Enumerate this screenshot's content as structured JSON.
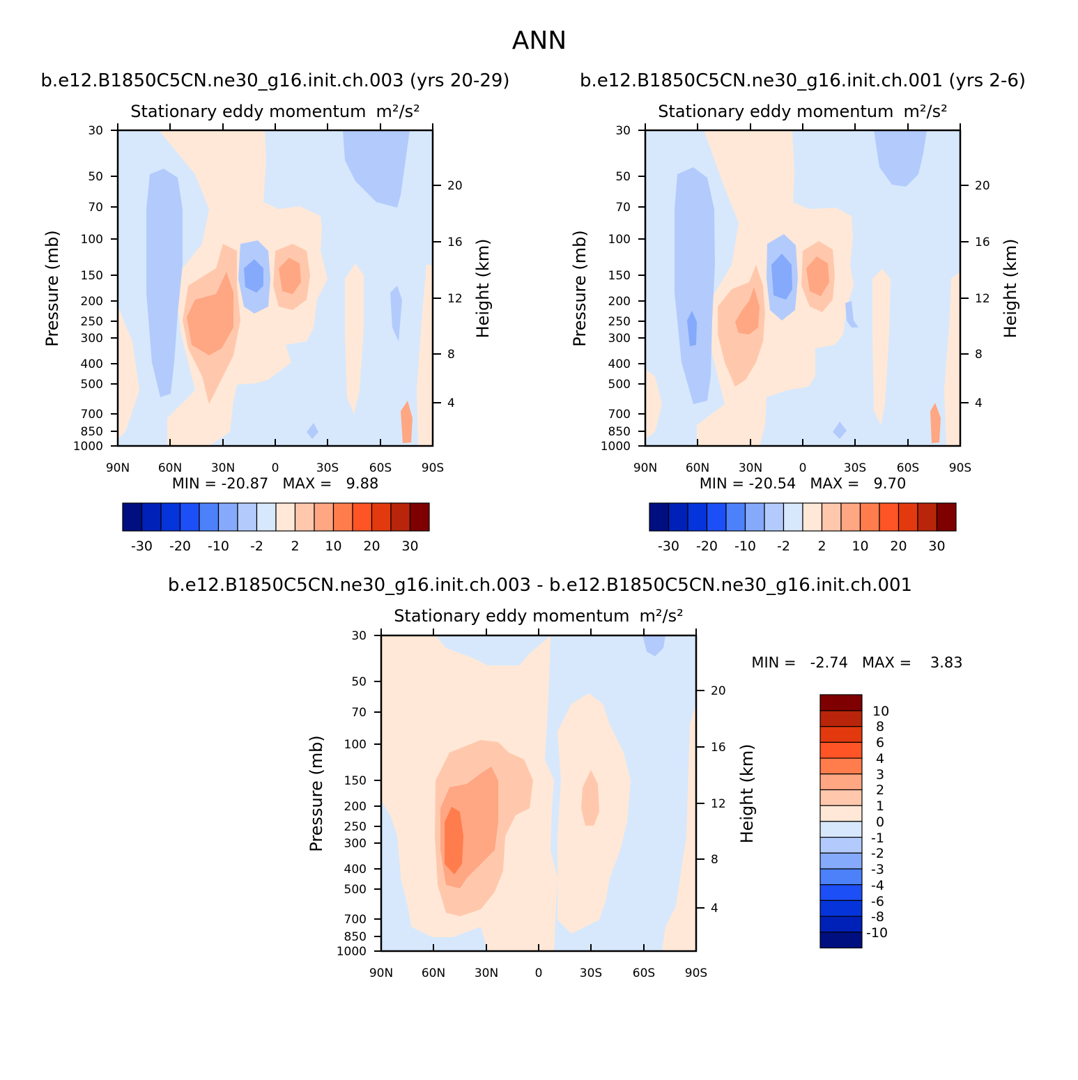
{
  "page_title": "ANN",
  "colors": {
    "warm_levels": [
      "#ffe8d7",
      "#ffc8ad",
      "#ffa683",
      "#ff7d4d",
      "#ff5426",
      "#e23a0e",
      "#b9250a",
      "#7f0000"
    ],
    "cool_levels": [
      "#d7e8fc",
      "#b2cbfc",
      "#85a9fb",
      "#4c81f9",
      "#1d4ff6",
      "#0534db",
      "#0021b8",
      "#000f80"
    ]
  },
  "chart_data": [
    {
      "type": "heatmap",
      "panel_title": "b.e12.B1850C5CN.ne30_g16.init.ch.003 (yrs 20-29)",
      "title": "Stationary eddy momentum",
      "units": "m²/s²",
      "xlabel": "",
      "ylabel": "Pressure (mb)",
      "ylabel_right": "Height (km)",
      "x_ticks": [
        "90N",
        "60N",
        "30N",
        "0",
        "30S",
        "60S",
        "90S"
      ],
      "x_range": [
        90,
        -90
      ],
      "y_ticks": [
        "30",
        "50",
        "70",
        "100",
        "150",
        "200",
        "250",
        "300",
        "400",
        "500",
        "700",
        "850",
        "1000"
      ],
      "y_range": [
        30,
        1000
      ],
      "height_ticks": [
        "20",
        "16",
        "12",
        "8",
        "4"
      ],
      "stats_label": "MIN = -20.87   MAX =   9.88",
      "min": -20.87,
      "max": 9.88,
      "colorbar_labels": [
        "-30",
        "-20",
        "-10",
        "-2",
        "2",
        "10",
        "20",
        "30"
      ],
      "colorbar_levels": [
        -30,
        -25,
        -20,
        -15,
        -10,
        -5,
        -2,
        0,
        2,
        5,
        10,
        15,
        20,
        25,
        30
      ],
      "features": [
        {
          "name": "sh-subtropical-max",
          "lat": -12,
          "p": 150,
          "value": 9.9
        },
        {
          "name": "nh-subtropical-min",
          "lat": 10,
          "p": 150,
          "value": -20.9
        },
        {
          "name": "nh-midlat-positive",
          "lat": 28,
          "p": 280,
          "value": 8
        },
        {
          "name": "nh-highlat-negative",
          "lat": 62,
          "p": 250,
          "value": -5
        }
      ]
    },
    {
      "type": "heatmap",
      "panel_title": "b.e12.B1850C5CN.ne30_g16.init.ch.001 (yrs 2-6)",
      "title": "Stationary eddy momentum",
      "units": "m²/s²",
      "xlabel": "",
      "ylabel": "Pressure (mb)",
      "ylabel_right": "Height (km)",
      "x_ticks": [
        "90N",
        "60N",
        "30N",
        "0",
        "30S",
        "60S",
        "90S"
      ],
      "x_range": [
        90,
        -90
      ],
      "y_ticks": [
        "30",
        "50",
        "70",
        "100",
        "150",
        "200",
        "250",
        "300",
        "400",
        "500",
        "700",
        "850",
        "1000"
      ],
      "y_range": [
        30,
        1000
      ],
      "height_ticks": [
        "20",
        "16",
        "12",
        "8",
        "4"
      ],
      "stats_label": "MIN = -20.54   MAX =   9.70",
      "min": -20.54,
      "max": 9.7,
      "colorbar_labels": [
        "-30",
        "-20",
        "-10",
        "-2",
        "2",
        "10",
        "20",
        "30"
      ],
      "colorbar_levels": [
        -30,
        -25,
        -20,
        -15,
        -10,
        -5,
        -2,
        0,
        2,
        5,
        10,
        15,
        20,
        25,
        30
      ],
      "features": [
        {
          "name": "sh-subtropical-max",
          "lat": -12,
          "p": 150,
          "value": 9.7
        },
        {
          "name": "nh-subtropical-min",
          "lat": 10,
          "p": 150,
          "value": -20.5
        },
        {
          "name": "nh-midlat-positive",
          "lat": 25,
          "p": 220,
          "value": 6
        },
        {
          "name": "nh-highlat-negative",
          "lat": 62,
          "p": 280,
          "value": -6
        }
      ]
    },
    {
      "type": "heatmap",
      "panel_title": "b.e12.B1850C5CN.ne30_g16.init.ch.003 - b.e12.B1850C5CN.ne30_g16.init.ch.001",
      "title": "Stationary eddy momentum",
      "units": "m²/s²",
      "xlabel": "",
      "ylabel": "Pressure (mb)",
      "ylabel_right": "Height (km)",
      "x_ticks": [
        "90N",
        "60N",
        "30N",
        "0",
        "30S",
        "60S",
        "90S"
      ],
      "x_range": [
        90,
        -90
      ],
      "y_ticks": [
        "30",
        "50",
        "70",
        "100",
        "150",
        "200",
        "250",
        "300",
        "400",
        "500",
        "700",
        "850",
        "1000"
      ],
      "y_range": [
        30,
        1000
      ],
      "height_ticks": [
        "20",
        "16",
        "12",
        "8",
        "4"
      ],
      "stats_label": "MIN =   -2.74   MAX =    3.83",
      "min": -2.74,
      "max": 3.83,
      "colorbar_labels": [
        "10",
        "8",
        "6",
        "4",
        "3",
        "2",
        "1",
        "0",
        "-1",
        "-2",
        "-3",
        "-4",
        "-6",
        "-8",
        "-10"
      ],
      "colorbar_levels": [
        -10,
        -8,
        -6,
        -4,
        -3,
        -2,
        -1,
        0,
        1,
        2,
        3,
        4,
        6,
        8,
        10
      ],
      "features": [
        {
          "name": "nh-midlat-positive",
          "lat": 50,
          "p": 270,
          "value": 3.8
        },
        {
          "name": "sh-subtropical-positive",
          "lat": -28,
          "p": 200,
          "value": 1.5
        },
        {
          "name": "polar-negative",
          "lat": -65,
          "p": 35,
          "value": -1.5
        }
      ]
    }
  ]
}
